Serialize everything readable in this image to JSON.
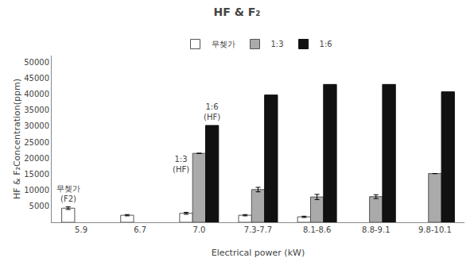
{
  "chart_data": {
    "type": "bar",
    "title": "HF & F₂",
    "xlabel": "Electrical power (kW)",
    "ylabel": "HF & F₂Concentration(ppm)",
    "categories": [
      "5.9",
      "6.7",
      "7.0",
      "7.3-7.7",
      "8.1-8.6",
      "8.8-9.1",
      "9.8-10.1"
    ],
    "series": [
      {
        "name": "무쳊가",
        "color": "#ffffff",
        "values": [
          4400,
          2200,
          2800,
          2200,
          1700,
          null,
          null
        ],
        "errors": [
          400,
          200,
          300,
          200,
          200,
          null,
          null
        ]
      },
      {
        "name": "1:3",
        "color": "#aaaaaa",
        "values": [
          null,
          null,
          21500,
          10200,
          7900,
          8000,
          15200
        ],
        "errors": [
          null,
          null,
          null,
          700,
          800,
          600,
          null
        ]
      },
      {
        "name": "1:6",
        "color": "#111111",
        "values": [
          null,
          null,
          30200,
          39700,
          43000,
          43000,
          40700
        ],
        "errors": [
          null,
          null,
          null,
          null,
          null,
          null,
          null
        ]
      }
    ],
    "ylim": [
      0,
      52000
    ],
    "yticks": [
      5000,
      10000,
      15000,
      20000,
      25000,
      30000,
      35000,
      40000,
      45000,
      50000
    ],
    "grid": false,
    "legend": "top",
    "annotations": [
      {
        "text": "무쳊가\n(F2)",
        "series": "무쳊가",
        "category": "5.9"
      },
      {
        "text": "1:3\n(HF)",
        "series": "1:3",
        "category": "7.0"
      },
      {
        "text": "1:6\n(HF)",
        "series": "1:6",
        "category": "7.0"
      }
    ]
  }
}
